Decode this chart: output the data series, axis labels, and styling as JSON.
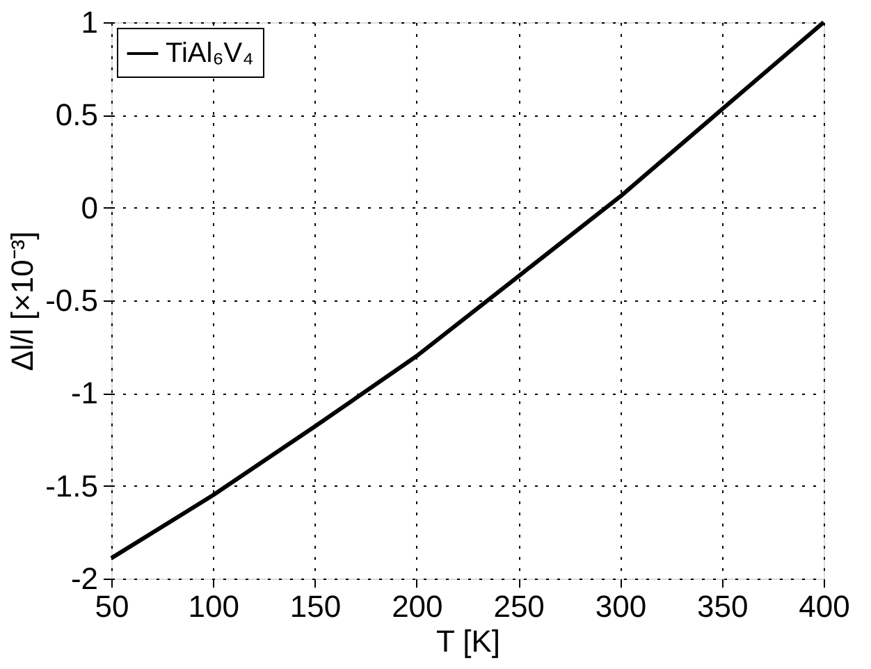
{
  "chart_data": {
    "type": "line",
    "xlabel": "T [K]",
    "ylabel": "Δl/l [×10⁻³]",
    "x": [
      50,
      100,
      150,
      200,
      250,
      293,
      300,
      350,
      400
    ],
    "series": [
      {
        "name": "TiAl₆V₄",
        "color": "#000000",
        "values": [
          -1.89,
          -1.55,
          -1.18,
          -0.8,
          -0.37,
          0,
          0.06,
          0.53,
          1.0
        ]
      }
    ],
    "xlim": [
      50,
      400
    ],
    "xticks": [
      50,
      100,
      150,
      200,
      250,
      300,
      350,
      400
    ],
    "ylim": [
      -2,
      1
    ],
    "yticks": [
      -2,
      -1.5,
      -1,
      -0.5,
      0,
      0.5,
      1
    ],
    "grid": true,
    "legend": "top left",
    "line_style": "solid",
    "marker": "none"
  }
}
